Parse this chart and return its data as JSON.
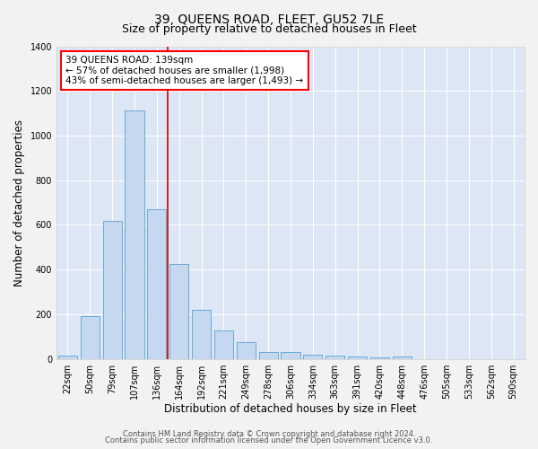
{
  "title": "39, QUEENS ROAD, FLEET, GU52 7LE",
  "subtitle": "Size of property relative to detached houses in Fleet",
  "xlabel": "Distribution of detached houses by size in Fleet",
  "ylabel": "Number of detached properties",
  "footer_line1": "Contains HM Land Registry data © Crown copyright and database right 2024.",
  "footer_line2": "Contains public sector information licensed under the Open Government Licence v3.0.",
  "annotation_title": "39 QUEENS ROAD: 139sqm",
  "annotation_line2": "← 57% of detached houses are smaller (1,998)",
  "annotation_line3": "43% of semi-detached houses are larger (1,493) →",
  "bar_labels": [
    "22sqm",
    "50sqm",
    "79sqm",
    "107sqm",
    "136sqm",
    "164sqm",
    "192sqm",
    "221sqm",
    "249sqm",
    "278sqm",
    "306sqm",
    "334sqm",
    "363sqm",
    "391sqm",
    "420sqm",
    "448sqm",
    "476sqm",
    "505sqm",
    "533sqm",
    "562sqm",
    "590sqm"
  ],
  "bar_values": [
    15,
    193,
    617,
    1113,
    672,
    425,
    218,
    128,
    75,
    33,
    31,
    20,
    13,
    10,
    7,
    12,
    0,
    0,
    0,
    0,
    0
  ],
  "bar_color": "#c5d8f0",
  "bar_edge_color": "#6aaad4",
  "vline_x": 4.5,
  "vline_color": "#cc0000",
  "ylim": [
    0,
    1400
  ],
  "yticks": [
    0,
    200,
    400,
    600,
    800,
    1000,
    1200,
    1400
  ],
  "fig_bg_color": "#f2f2f2",
  "plot_bg_color": "#dce6f5",
  "grid_color": "#ffffff",
  "title_fontsize": 10,
  "subtitle_fontsize": 9,
  "label_fontsize": 8.5,
  "tick_fontsize": 7,
  "annotation_fontsize": 7.5,
  "footer_fontsize": 6
}
